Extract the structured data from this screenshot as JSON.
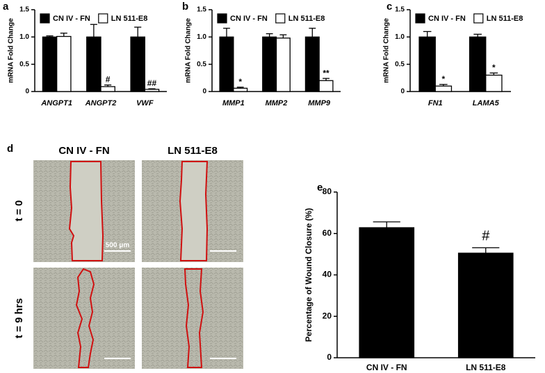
{
  "chart_data": [
    {
      "type": "bar",
      "panel_label": "a",
      "y_label": "mRNA Fold Change",
      "categories": [
        "ANGPT1",
        "ANGPT2",
        "VWF"
      ],
      "series": [
        {
          "name": "CN IV - FN",
          "color": "#000000",
          "values": [
            1.0,
            1.0,
            1.0
          ],
          "errors": [
            0.02,
            0.23,
            0.18
          ],
          "annotations": [
            null,
            null,
            null
          ]
        },
        {
          "name": "LN 511-E8",
          "color": "#ffffff",
          "values": [
            1.01,
            0.09,
            0.04
          ],
          "errors": [
            0.06,
            0.03,
            0.01
          ],
          "annotations": [
            null,
            "#",
            "##"
          ]
        }
      ],
      "ylim": [
        0,
        1.5
      ],
      "yticks": [
        0,
        0.5,
        {
          "value": 1,
          "label": "1.0"
        },
        1.5
      ]
    },
    {
      "type": "bar",
      "panel_label": "b",
      "y_label": "mRNA Fold Change",
      "categories": [
        "MMP1",
        "MMP2",
        "MMP9"
      ],
      "series": [
        {
          "name": "CN IV - FN",
          "color": "#000000",
          "values": [
            1.0,
            1.0,
            1.0
          ],
          "errors": [
            0.16,
            0.06,
            0.16
          ],
          "annotations": [
            null,
            null,
            null
          ]
        },
        {
          "name": "LN 511-E8",
          "color": "#ffffff",
          "values": [
            0.06,
            0.98,
            0.2
          ],
          "errors": [
            0.02,
            0.06,
            0.04
          ],
          "annotations": [
            "*",
            null,
            "**"
          ]
        }
      ],
      "ylim": [
        0,
        1.5
      ],
      "yticks": [
        0,
        0.5,
        {
          "value": 1,
          "label": "1.0"
        },
        1.5
      ]
    },
    {
      "type": "bar",
      "panel_label": "c",
      "y_label": "mRNA Fold Change",
      "categories": [
        "FN1",
        "LAMA5"
      ],
      "series": [
        {
          "name": "CN IV - FN",
          "color": "#000000",
          "values": [
            1.0,
            1.0
          ],
          "errors": [
            0.1,
            0.05
          ],
          "annotations": [
            null,
            null
          ]
        },
        {
          "name": "LN 511-E8",
          "color": "#ffffff",
          "values": [
            0.1,
            0.3
          ],
          "errors": [
            0.03,
            0.04
          ],
          "annotations": [
            "*",
            "*"
          ]
        }
      ],
      "ylim": [
        0,
        1.5
      ],
      "yticks": [
        0,
        0.5,
        {
          "value": 1,
          "label": "1.0"
        },
        1.5
      ]
    },
    {
      "type": "bar",
      "panel_label": "e",
      "y_label": "Percentage of Wound Closure (%)",
      "categories": [
        "CN IV - FN",
        "LN 511-E8"
      ],
      "series": [
        {
          "color": "#000000",
          "values": [
            62.8,
            50.5
          ],
          "errors": [
            2.8,
            2.6
          ],
          "annotations": [
            null,
            "#"
          ]
        }
      ],
      "ylim": [
        0,
        80
      ],
      "yticks": [
        0,
        20,
        40,
        60,
        80
      ]
    }
  ],
  "micrographs": {
    "panel_label": "d",
    "columns": [
      "CN IV - FN",
      "LN 511-E8"
    ],
    "rows": [
      "t = 0",
      "t = 9 hrs"
    ],
    "scale_bar_label": "500 μm"
  }
}
